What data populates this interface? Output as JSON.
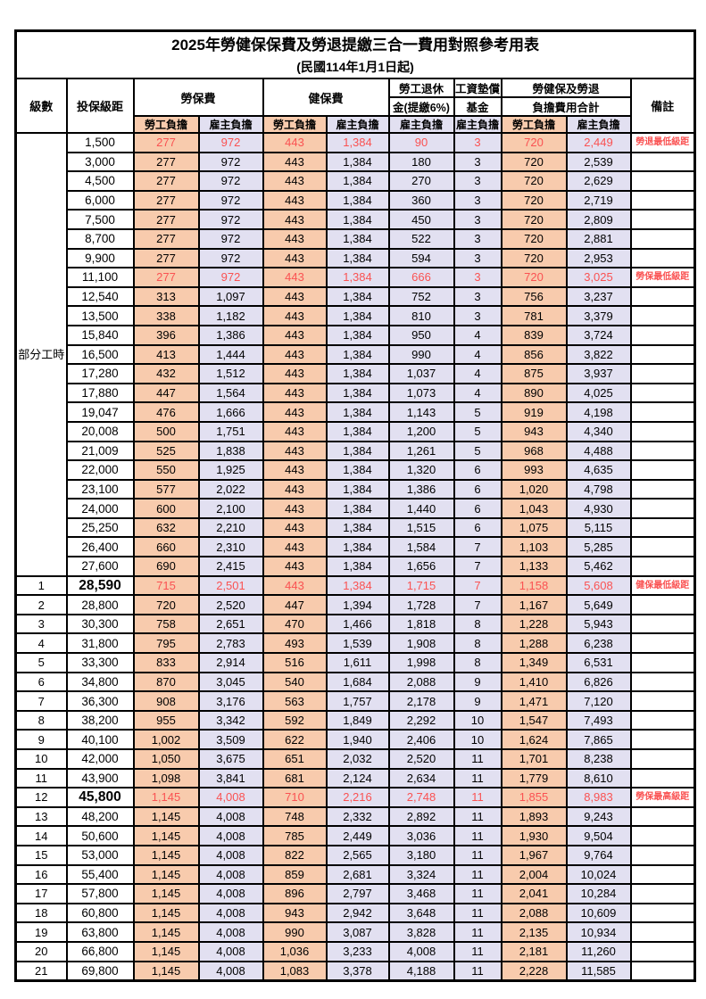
{
  "title": "2025年勞健保保費及勞退提繳三合一費用對照參考用表",
  "subtitle": "(民國114年1月1日起)",
  "colors": {
    "employee_col_bg": "#F8CBAD",
    "employer_col_bg": "#E2E0F1",
    "highlight_text": "#FA5252",
    "border": "#000000"
  },
  "header": {
    "level": "級數",
    "bracket": "投保級距",
    "labor_insurance": "勞保費",
    "health_insurance": "健保費",
    "pension_line1": "勞工退休",
    "pension_line2": "金(提繳6%)",
    "wage_fund_line1": "工資墊償",
    "wage_fund_line2": "基金",
    "total_line1": "勞健保及勞退",
    "total_line2": "負擔費用合計",
    "remark": "備註",
    "employee": "勞工負擔",
    "employer": "雇主負擔"
  },
  "part_time": {
    "label": "部分工時",
    "span": 23
  },
  "value_columns": [
    "labor_employee",
    "labor_employer",
    "health_employee",
    "health_employer",
    "pension_employer",
    "wage_fund_employer",
    "total_employee",
    "total_employer"
  ],
  "rows": [
    {
      "level": "",
      "bracket": "1,500",
      "values": [
        "277",
        "972",
        "443",
        "1,384",
        "90",
        "3",
        "720",
        "2,449"
      ],
      "remark": "勞退最低級距",
      "red": true,
      "big": false
    },
    {
      "level": "",
      "bracket": "3,000",
      "values": [
        "277",
        "972",
        "443",
        "1,384",
        "180",
        "3",
        "720",
        "2,539"
      ],
      "remark": "",
      "red": false,
      "big": false
    },
    {
      "level": "",
      "bracket": "4,500",
      "values": [
        "277",
        "972",
        "443",
        "1,384",
        "270",
        "3",
        "720",
        "2,629"
      ],
      "remark": "",
      "red": false,
      "big": false
    },
    {
      "level": "",
      "bracket": "6,000",
      "values": [
        "277",
        "972",
        "443",
        "1,384",
        "360",
        "3",
        "720",
        "2,719"
      ],
      "remark": "",
      "red": false,
      "big": false
    },
    {
      "level": "",
      "bracket": "7,500",
      "values": [
        "277",
        "972",
        "443",
        "1,384",
        "450",
        "3",
        "720",
        "2,809"
      ],
      "remark": "",
      "red": false,
      "big": false
    },
    {
      "level": "",
      "bracket": "8,700",
      "values": [
        "277",
        "972",
        "443",
        "1,384",
        "522",
        "3",
        "720",
        "2,881"
      ],
      "remark": "",
      "red": false,
      "big": false
    },
    {
      "level": "",
      "bracket": "9,900",
      "values": [
        "277",
        "972",
        "443",
        "1,384",
        "594",
        "3",
        "720",
        "2,953"
      ],
      "remark": "",
      "red": false,
      "big": false
    },
    {
      "level": "",
      "bracket": "11,100",
      "values": [
        "277",
        "972",
        "443",
        "1,384",
        "666",
        "3",
        "720",
        "3,025"
      ],
      "remark": "勞保最低級距",
      "red": true,
      "big": false
    },
    {
      "level": "",
      "bracket": "12,540",
      "values": [
        "313",
        "1,097",
        "443",
        "1,384",
        "752",
        "3",
        "756",
        "3,237"
      ],
      "remark": "",
      "red": false,
      "big": false
    },
    {
      "level": "",
      "bracket": "13,500",
      "values": [
        "338",
        "1,182",
        "443",
        "1,384",
        "810",
        "3",
        "781",
        "3,379"
      ],
      "remark": "",
      "red": false,
      "big": false
    },
    {
      "level": "",
      "bracket": "15,840",
      "values": [
        "396",
        "1,386",
        "443",
        "1,384",
        "950",
        "4",
        "839",
        "3,724"
      ],
      "remark": "",
      "red": false,
      "big": false
    },
    {
      "level": "",
      "bracket": "16,500",
      "values": [
        "413",
        "1,444",
        "443",
        "1,384",
        "990",
        "4",
        "856",
        "3,822"
      ],
      "remark": "",
      "red": false,
      "big": false
    },
    {
      "level": "",
      "bracket": "17,280",
      "values": [
        "432",
        "1,512",
        "443",
        "1,384",
        "1,037",
        "4",
        "875",
        "3,937"
      ],
      "remark": "",
      "red": false,
      "big": false
    },
    {
      "level": "",
      "bracket": "17,880",
      "values": [
        "447",
        "1,564",
        "443",
        "1,384",
        "1,073",
        "4",
        "890",
        "4,025"
      ],
      "remark": "",
      "red": false,
      "big": false
    },
    {
      "level": "",
      "bracket": "19,047",
      "values": [
        "476",
        "1,666",
        "443",
        "1,384",
        "1,143",
        "5",
        "919",
        "4,198"
      ],
      "remark": "",
      "red": false,
      "big": false
    },
    {
      "level": "",
      "bracket": "20,008",
      "values": [
        "500",
        "1,751",
        "443",
        "1,384",
        "1,200",
        "5",
        "943",
        "4,340"
      ],
      "remark": "",
      "red": false,
      "big": false
    },
    {
      "level": "",
      "bracket": "21,009",
      "values": [
        "525",
        "1,838",
        "443",
        "1,384",
        "1,261",
        "5",
        "968",
        "4,488"
      ],
      "remark": "",
      "red": false,
      "big": false
    },
    {
      "level": "",
      "bracket": "22,000",
      "values": [
        "550",
        "1,925",
        "443",
        "1,384",
        "1,320",
        "6",
        "993",
        "4,635"
      ],
      "remark": "",
      "red": false,
      "big": false
    },
    {
      "level": "",
      "bracket": "23,100",
      "values": [
        "577",
        "2,022",
        "443",
        "1,384",
        "1,386",
        "6",
        "1,020",
        "4,798"
      ],
      "remark": "",
      "red": false,
      "big": false
    },
    {
      "level": "",
      "bracket": "24,000",
      "values": [
        "600",
        "2,100",
        "443",
        "1,384",
        "1,440",
        "6",
        "1,043",
        "4,930"
      ],
      "remark": "",
      "red": false,
      "big": false
    },
    {
      "level": "",
      "bracket": "25,250",
      "values": [
        "632",
        "2,210",
        "443",
        "1,384",
        "1,515",
        "6",
        "1,075",
        "5,115"
      ],
      "remark": "",
      "red": false,
      "big": false
    },
    {
      "level": "",
      "bracket": "26,400",
      "values": [
        "660",
        "2,310",
        "443",
        "1,384",
        "1,584",
        "7",
        "1,103",
        "5,285"
      ],
      "remark": "",
      "red": false,
      "big": false
    },
    {
      "level": "",
      "bracket": "27,600",
      "values": [
        "690",
        "2,415",
        "443",
        "1,384",
        "1,656",
        "7",
        "1,133",
        "5,462"
      ],
      "remark": "",
      "red": false,
      "big": false
    },
    {
      "level": "1",
      "bracket": "28,590",
      "values": [
        "715",
        "2,501",
        "443",
        "1,384",
        "1,715",
        "7",
        "1,158",
        "5,608"
      ],
      "remark": "健保最低級距",
      "red": true,
      "big": true
    },
    {
      "level": "2",
      "bracket": "28,800",
      "values": [
        "720",
        "2,520",
        "447",
        "1,394",
        "1,728",
        "7",
        "1,167",
        "5,649"
      ],
      "remark": "",
      "red": false,
      "big": false
    },
    {
      "level": "3",
      "bracket": "30,300",
      "values": [
        "758",
        "2,651",
        "470",
        "1,466",
        "1,818",
        "8",
        "1,228",
        "5,943"
      ],
      "remark": "",
      "red": false,
      "big": false
    },
    {
      "level": "4",
      "bracket": "31,800",
      "values": [
        "795",
        "2,783",
        "493",
        "1,539",
        "1,908",
        "8",
        "1,288",
        "6,238"
      ],
      "remark": "",
      "red": false,
      "big": false
    },
    {
      "level": "5",
      "bracket": "33,300",
      "values": [
        "833",
        "2,914",
        "516",
        "1,611",
        "1,998",
        "8",
        "1,349",
        "6,531"
      ],
      "remark": "",
      "red": false,
      "big": false
    },
    {
      "level": "6",
      "bracket": "34,800",
      "values": [
        "870",
        "3,045",
        "540",
        "1,684",
        "2,088",
        "9",
        "1,410",
        "6,826"
      ],
      "remark": "",
      "red": false,
      "big": false
    },
    {
      "level": "7",
      "bracket": "36,300",
      "values": [
        "908",
        "3,176",
        "563",
        "1,757",
        "2,178",
        "9",
        "1,471",
        "7,120"
      ],
      "remark": "",
      "red": false,
      "big": false
    },
    {
      "level": "8",
      "bracket": "38,200",
      "values": [
        "955",
        "3,342",
        "592",
        "1,849",
        "2,292",
        "10",
        "1,547",
        "7,493"
      ],
      "remark": "",
      "red": false,
      "big": false
    },
    {
      "level": "9",
      "bracket": "40,100",
      "values": [
        "1,002",
        "3,509",
        "622",
        "1,940",
        "2,406",
        "10",
        "1,624",
        "7,865"
      ],
      "remark": "",
      "red": false,
      "big": false
    },
    {
      "level": "10",
      "bracket": "42,000",
      "values": [
        "1,050",
        "3,675",
        "651",
        "2,032",
        "2,520",
        "11",
        "1,701",
        "8,238"
      ],
      "remark": "",
      "red": false,
      "big": false
    },
    {
      "level": "11",
      "bracket": "43,900",
      "values": [
        "1,098",
        "3,841",
        "681",
        "2,124",
        "2,634",
        "11",
        "1,779",
        "8,610"
      ],
      "remark": "",
      "red": false,
      "big": false
    },
    {
      "level": "12",
      "bracket": "45,800",
      "values": [
        "1,145",
        "4,008",
        "710",
        "2,216",
        "2,748",
        "11",
        "1,855",
        "8,983"
      ],
      "remark": "勞保最高級距",
      "red": true,
      "big": true
    },
    {
      "level": "13",
      "bracket": "48,200",
      "values": [
        "1,145",
        "4,008",
        "748",
        "2,332",
        "2,892",
        "11",
        "1,893",
        "9,243"
      ],
      "remark": "",
      "red": false,
      "big": false
    },
    {
      "level": "14",
      "bracket": "50,600",
      "values": [
        "1,145",
        "4,008",
        "785",
        "2,449",
        "3,036",
        "11",
        "1,930",
        "9,504"
      ],
      "remark": "",
      "red": false,
      "big": false
    },
    {
      "level": "15",
      "bracket": "53,000",
      "values": [
        "1,145",
        "4,008",
        "822",
        "2,565",
        "3,180",
        "11",
        "1,967",
        "9,764"
      ],
      "remark": "",
      "red": false,
      "big": false
    },
    {
      "level": "16",
      "bracket": "55,400",
      "values": [
        "1,145",
        "4,008",
        "859",
        "2,681",
        "3,324",
        "11",
        "2,004",
        "10,024"
      ],
      "remark": "",
      "red": false,
      "big": false
    },
    {
      "level": "17",
      "bracket": "57,800",
      "values": [
        "1,145",
        "4,008",
        "896",
        "2,797",
        "3,468",
        "11",
        "2,041",
        "10,284"
      ],
      "remark": "",
      "red": false,
      "big": false
    },
    {
      "level": "18",
      "bracket": "60,800",
      "values": [
        "1,145",
        "4,008",
        "943",
        "2,942",
        "3,648",
        "11",
        "2,088",
        "10,609"
      ],
      "remark": "",
      "red": false,
      "big": false
    },
    {
      "level": "19",
      "bracket": "63,800",
      "values": [
        "1,145",
        "4,008",
        "990",
        "3,087",
        "3,828",
        "11",
        "2,135",
        "10,934"
      ],
      "remark": "",
      "red": false,
      "big": false
    },
    {
      "level": "20",
      "bracket": "66,800",
      "values": [
        "1,145",
        "4,008",
        "1,036",
        "3,233",
        "4,008",
        "11",
        "2,181",
        "11,260"
      ],
      "remark": "",
      "red": false,
      "big": false
    },
    {
      "level": "21",
      "bracket": "69,800",
      "values": [
        "1,145",
        "4,008",
        "1,083",
        "3,378",
        "4,188",
        "11",
        "2,228",
        "11,585"
      ],
      "remark": "",
      "red": false,
      "big": false
    }
  ]
}
